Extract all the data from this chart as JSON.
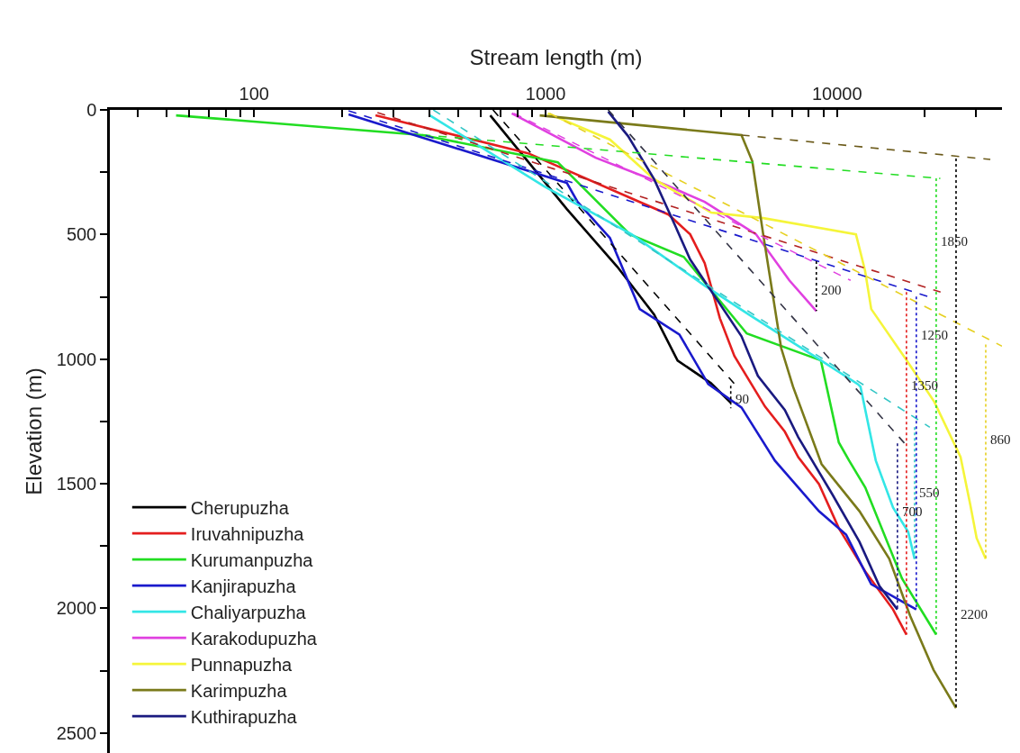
{
  "chart_data": {
    "type": "line",
    "xlabel": "Stream length (m)",
    "ylabel": "Elevation (m)",
    "log": "x",
    "legend": "bottom left",
    "line_style": "solid",
    "marker": "none",
    "xlim": [
      32,
      36800
    ],
    "ylim": [
      2580,
      0
    ],
    "xticks": [
      {
        "value": 40,
        "label": null
      },
      {
        "value": 50,
        "label": null
      },
      {
        "value": 60,
        "label": null
      },
      {
        "value": 70,
        "label": null
      },
      {
        "value": 80,
        "label": null
      },
      {
        "value": 90,
        "label": null
      },
      100,
      {
        "value": 200,
        "label": null
      },
      {
        "value": 300,
        "label": null
      },
      {
        "value": 400,
        "label": null
      },
      {
        "value": 500,
        "label": null
      },
      {
        "value": 600,
        "label": null
      },
      {
        "value": 700,
        "label": null
      },
      {
        "value": 800,
        "label": null
      },
      {
        "value": 900,
        "label": null
      },
      1000,
      {
        "value": 2000,
        "label": null
      },
      {
        "value": 3000,
        "label": null
      },
      {
        "value": 4000,
        "label": null
      },
      {
        "value": 5000,
        "label": null
      },
      {
        "value": 6000,
        "label": null
      },
      {
        "value": 7000,
        "label": null
      },
      {
        "value": 8000,
        "label": null
      },
      {
        "value": 9000,
        "label": null
      },
      10000,
      {
        "value": 20000,
        "label": null
      },
      {
        "value": 30000,
        "label": null
      }
    ],
    "yticks": [
      0,
      {
        "value": 250,
        "label": null
      },
      500,
      {
        "value": 750,
        "label": null
      },
      1000,
      {
        "value": 1250,
        "label": null
      },
      1500,
      {
        "value": 1750,
        "label": null
      },
      2000,
      {
        "value": 2250,
        "label": null
      },
      2500
    ],
    "series": [
      {
        "name": "Cherupuzha",
        "color": "#000000",
        "x": [
          646,
          1183,
          1761,
          2357,
          2838,
          3690,
          4318
        ],
        "values": [
          22,
          398,
          629,
          821,
          1006,
          1096,
          1175
        ]
      },
      {
        "name": "Iruvahnipuzha",
        "color": "#e41e1e",
        "x": [
          261,
          871,
          2642,
          3133,
          3515,
          3963,
          4443,
          5660,
          6620,
          7360,
          8670,
          10140,
          12560,
          15560,
          17300
        ],
        "values": [
          22,
          174,
          420,
          499,
          615,
          836,
          987,
          1190,
          1291,
          1393,
          1501,
          1678,
          1856,
          2004,
          2105
        ]
      },
      {
        "name": "Kurumanpuzha",
        "color": "#22dd22",
        "x": [
          54,
          378,
          1101,
          1945,
          2980,
          4900,
          8800,
          10140,
          11000,
          12500,
          16700,
          21880
        ],
        "values": [
          22,
          101,
          210,
          499,
          590,
          897,
          1005,
          1334,
          1407,
          1515,
          1880,
          2105
        ]
      },
      {
        "name": "Kanjirapuzha",
        "color": "#1a1acc",
        "x": [
          211,
          1101,
          1183,
          1288,
          1663,
          2104,
          2878,
          3614,
          4700,
          6120,
          8670,
          10740,
          13100,
          18700
        ],
        "values": [
          18,
          282,
          293,
          369,
          514,
          799,
          901,
          1100,
          1194,
          1407,
          1610,
          1704,
          1903,
          2004
        ]
      },
      {
        "name": "Chaliyarpuzha",
        "color": "#33e6e6",
        "x": [
          401,
          989,
          1973,
          3515,
          4977,
          8610,
          11780,
          12030,
          13580,
          15560,
          17540,
          18450
        ],
        "values": [
          22,
          307,
          499,
          705,
          821,
          998,
          1100,
          1110,
          1407,
          1595,
          1693,
          1801
        ]
      },
      {
        "name": "Karakodupuzha",
        "color": "#e040e0",
        "x": [
          766,
          1486,
          2570,
          3515,
          5272,
          6860,
          8490
        ],
        "values": [
          14,
          192,
          300,
          369,
          499,
          684,
          807
        ]
      },
      {
        "name": "Punnapuzha",
        "color": "#f5f53a",
        "x": [
          1018,
          1663,
          2357,
          3703,
          5580,
          11610,
          12470,
          13100,
          17180,
          21580,
          26530,
          28640,
          30120,
          32370
        ],
        "values": [
          14,
          119,
          278,
          412,
          434,
          499,
          644,
          799,
          998,
          1172,
          1393,
          1584,
          1718,
          1801
        ]
      },
      {
        "name": "Karimpuzha",
        "color": "#7a7a1a",
        "x": [
          955,
          4700,
          5120,
          5580,
          6430,
          7060,
          8850,
          11940,
          15100,
          17800,
          21420,
          25600
        ],
        "values": [
          22,
          101,
          206,
          499,
          955,
          1110,
          1421,
          1610,
          1801,
          2029,
          2246,
          2400
        ]
      },
      {
        "name": "Kuthirapuzha",
        "color": "#1a1a80",
        "x": [
          1640,
          1919,
          2357,
          2797,
          3133,
          4700,
          5350,
          6620,
          7360,
          9650,
          11940,
          13970,
          16110
        ],
        "values": [
          7,
          105,
          278,
          470,
          600,
          908,
          1067,
          1204,
          1313,
          1544,
          1733,
          1910,
          2004
        ]
      },
      {
        "color": "#000000",
        "line_style": "dashed",
        "x": [
          660,
          4508
        ],
        "values": [
          0,
          1107
        ]
      },
      {
        "color": "#b22222",
        "line_style": "dashed",
        "x": [
          265,
          22650
        ],
        "values": [
          11,
          731
        ]
      },
      {
        "color": "#22dd22",
        "line_style": "dashed",
        "x": [
          378,
          22600
        ],
        "values": [
          100,
          275
        ]
      },
      {
        "color": "#1a1acc",
        "line_style": "dashed",
        "x": [
          211,
          20530
        ],
        "values": [
          4,
          749
        ]
      },
      {
        "color": "#33c6c6",
        "line_style": "dashed",
        "x": [
          412,
          20810
        ],
        "values": [
          0,
          1273
        ]
      },
      {
        "color": "#e040e0",
        "line_style": "dashed",
        "x": [
          780,
          11130
        ],
        "values": [
          14,
          684
        ]
      },
      {
        "color": "#e6d020",
        "line_style": "dashed",
        "x": [
          1033,
          36800
        ],
        "values": [
          14,
          948
        ]
      },
      {
        "color": "#6b5a1a",
        "line_style": "dashed",
        "x": [
          4700,
          33560
        ],
        "values": [
          101,
          199
        ]
      },
      {
        "color": "#333344",
        "line_style": "dashed",
        "x": [
          1640,
          17060
        ],
        "values": [
          0,
          1338
        ]
      },
      {
        "color": "#000000",
        "line_style": "dotted",
        "x": [
          4318,
          4318
        ],
        "values": [
          1107,
          1197
        ]
      },
      {
        "color": "#000000",
        "line_style": "dotted",
        "x": [
          8490,
          8490
        ],
        "values": [
          607,
          807
        ]
      },
      {
        "color": "#e41e1e",
        "line_style": "dotted",
        "x": [
          17300,
          17300
        ],
        "values": [
          731,
          2105
        ]
      },
      {
        "color": "#1a1acc",
        "line_style": "dotted",
        "x": [
          18700,
          18700
        ],
        "values": [
          749,
          2004
        ]
      },
      {
        "color": "#1a1a80",
        "line_style": "dotted",
        "x": [
          16110,
          16110
        ],
        "values": [
          1338,
          2004
        ]
      },
      {
        "color": "#33c6c6",
        "line_style": "dotted",
        "x": [
          18450,
          18450
        ],
        "values": [
          1273,
          1801
        ]
      },
      {
        "color": "#22dd22",
        "line_style": "dotted",
        "x": [
          21880,
          21880
        ],
        "values": [
          275,
          2105
        ]
      },
      {
        "color": "#000000",
        "line_style": "dotted",
        "x": [
          25600,
          25600
        ],
        "values": [
          195,
          2400
        ]
      },
      {
        "color": "#e6d020",
        "line_style": "dotted",
        "x": [
          32370,
          32370
        ],
        "values": [
          941,
          1801
        ]
      }
    ],
    "annotations": [
      {
        "text": "90",
        "x": 4318,
        "y": 1161
      },
      {
        "text": "200",
        "x": 8490,
        "y": 723
      },
      {
        "text": "1850",
        "x": 21880,
        "y": 528
      },
      {
        "text": "1250",
        "x": 18700,
        "y": 904
      },
      {
        "text": "1350",
        "x": 17300,
        "y": 1107
      },
      {
        "text": "860",
        "x": 32370,
        "y": 1324
      },
      {
        "text": "550",
        "x": 18450,
        "y": 1534
      },
      {
        "text": "700",
        "x": 16110,
        "y": 1610
      },
      {
        "text": "2200",
        "x": 25600,
        "y": 2025
      }
    ]
  }
}
